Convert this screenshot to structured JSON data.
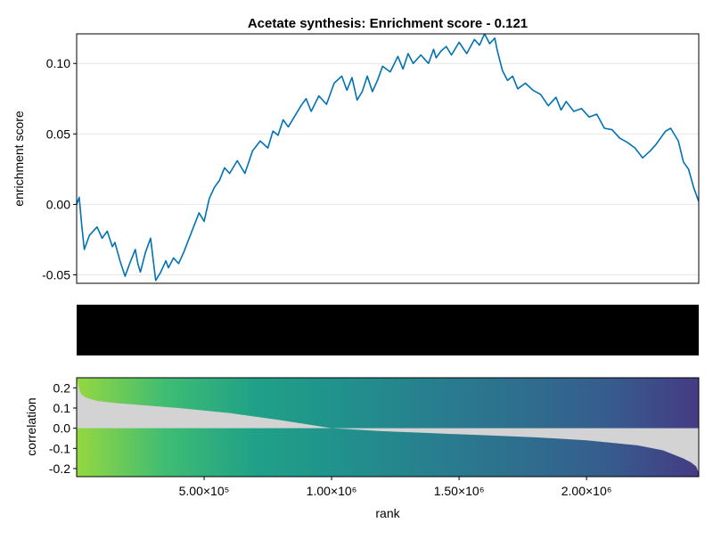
{
  "chart_data": [
    {
      "type": "line",
      "title": "Acetate synthesis: Enrichment score - 0.121",
      "ylabel": "enrichment score",
      "xlim": [
        1,
        2440000
      ],
      "ylim": [
        -0.056,
        0.121
      ],
      "yticks": [
        -0.05,
        0.0,
        0.05,
        0.1
      ],
      "ytick_labels": [
        "-0.05",
        "0.00",
        "0.05",
        "0.10"
      ],
      "grid": true,
      "color": "#0072b2",
      "series": [
        {
          "x": [
            0,
            10000,
            20000,
            30000,
            50000,
            80000,
            100000,
            120000,
            140000,
            150000,
            170000,
            190000,
            210000,
            230000,
            240000,
            250000,
            270000,
            290000,
            310000,
            330000,
            350000,
            360000,
            380000,
            400000,
            420000,
            450000,
            480000,
            500000,
            520000,
            540000,
            560000,
            580000,
            600000,
            630000,
            660000,
            690000,
            720000,
            750000,
            770000,
            790000,
            810000,
            830000,
            860000,
            880000,
            900000,
            920000,
            950000,
            980000,
            1010000,
            1040000,
            1060000,
            1080000,
            1100000,
            1120000,
            1140000,
            1160000,
            1180000,
            1200000,
            1230000,
            1260000,
            1280000,
            1300000,
            1320000,
            1350000,
            1380000,
            1400000,
            1410000,
            1430000,
            1450000,
            1470000,
            1500000,
            1530000,
            1560000,
            1580000,
            1600000,
            1620000,
            1640000,
            1650000,
            1670000,
            1690000,
            1710000,
            1730000,
            1760000,
            1790000,
            1820000,
            1850000,
            1880000,
            1900000,
            1920000,
            1950000,
            1980000,
            2010000,
            2040000,
            2070000,
            2100000,
            2130000,
            2160000,
            2190000,
            2220000,
            2250000,
            2270000,
            2290000,
            2310000,
            2330000,
            2350000,
            2360000,
            2380000,
            2400000,
            2420000,
            2440000
          ],
          "y": [
            0.0,
            0.005,
            -0.015,
            -0.032,
            -0.022,
            -0.016,
            -0.024,
            -0.019,
            -0.03,
            -0.027,
            -0.04,
            -0.051,
            -0.041,
            -0.032,
            -0.042,
            -0.048,
            -0.034,
            -0.024,
            -0.054,
            -0.048,
            -0.04,
            -0.045,
            -0.038,
            -0.042,
            -0.034,
            -0.02,
            -0.006,
            -0.012,
            0.004,
            0.012,
            0.017,
            0.026,
            0.022,
            0.031,
            0.022,
            0.038,
            0.045,
            0.04,
            0.052,
            0.049,
            0.06,
            0.055,
            0.064,
            0.07,
            0.075,
            0.066,
            0.077,
            0.071,
            0.086,
            0.091,
            0.081,
            0.09,
            0.074,
            0.08,
            0.091,
            0.08,
            0.088,
            0.098,
            0.094,
            0.105,
            0.096,
            0.107,
            0.1,
            0.106,
            0.1,
            0.11,
            0.104,
            0.109,
            0.112,
            0.106,
            0.115,
            0.107,
            0.117,
            0.113,
            0.121,
            0.114,
            0.118,
            0.109,
            0.095,
            0.088,
            0.091,
            0.082,
            0.086,
            0.081,
            0.078,
            0.07,
            0.076,
            0.067,
            0.073,
            0.066,
            0.068,
            0.062,
            0.064,
            0.054,
            0.053,
            0.047,
            0.044,
            0.04,
            0.033,
            0.038,
            0.042,
            0.047,
            0.052,
            0.054,
            0.048,
            0.045,
            0.03,
            0.025,
            0.012,
            0.002
          ]
        }
      ]
    },
    {
      "type": "barcode",
      "note_hidden": false,
      "color": "#000000"
    },
    {
      "type": "area",
      "xlabel": "rank",
      "ylabel": "correlation",
      "xlim": [
        1,
        2440000
      ],
      "ylim": [
        -0.24,
        0.25
      ],
      "xticks": [
        500000,
        1000000,
        1500000,
        2000000
      ],
      "xtick_labels": [
        "5.00×10⁵",
        "1.00×10⁶",
        "1.50×10⁶",
        "2.00×10⁶"
      ],
      "yticks": [
        -0.2,
        -0.1,
        0.0,
        0.1,
        0.2
      ],
      "ytick_labels": [
        "-0.2",
        "-0.1",
        "0.0",
        "0.1",
        "0.2"
      ],
      "fill_color": "#d3d3d3",
      "gradient_colors": [
        "#95d840",
        "#3fbc73",
        "#1fa187",
        "#21918c",
        "#277f8e",
        "#2e6e8e",
        "#365c8d",
        "#443b84"
      ],
      "series": [
        {
          "x": [
            0,
            10000,
            20000,
            40000,
            80000,
            150000,
            250000,
            400000,
            600000,
            800000,
            1000000,
            1200000,
            1400000,
            1600000,
            1800000,
            2000000,
            2200000,
            2300000,
            2380000,
            2410000,
            2430000,
            2440000
          ],
          "y": [
            0.25,
            0.19,
            0.165,
            0.15,
            0.135,
            0.125,
            0.115,
            0.1,
            0.075,
            0.04,
            0.0,
            -0.015,
            -0.025,
            -0.035,
            -0.045,
            -0.06,
            -0.085,
            -0.11,
            -0.15,
            -0.17,
            -0.19,
            -0.22
          ]
        }
      ]
    }
  ]
}
